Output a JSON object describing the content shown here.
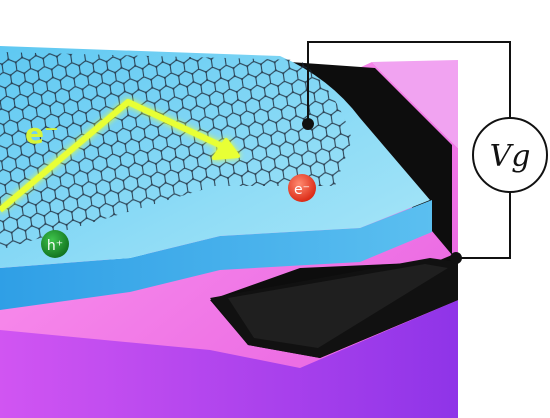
{
  "figure": {
    "electron_path_label": "e⁻",
    "electron_label": "e⁻",
    "hole_label": "h⁺",
    "gate_voltage_label": "Vg",
    "colors": {
      "substrate_top": "#ff7fe8",
      "substrate_front": "#b13af0",
      "dielectric_top": "#7cd8f4",
      "dielectric_front": "#45b4ee",
      "gate_electrode": "#0d0d0d",
      "graphene_lattice": "#1e2a3a",
      "trajectory_arrow": "#e8ff36",
      "electron": "#f03b22",
      "hole": "#1a8f2a",
      "circuit_wire": "#111111"
    },
    "icons": [
      "graphene-lattice",
      "trajectory-arrow",
      "voltage-source"
    ]
  }
}
